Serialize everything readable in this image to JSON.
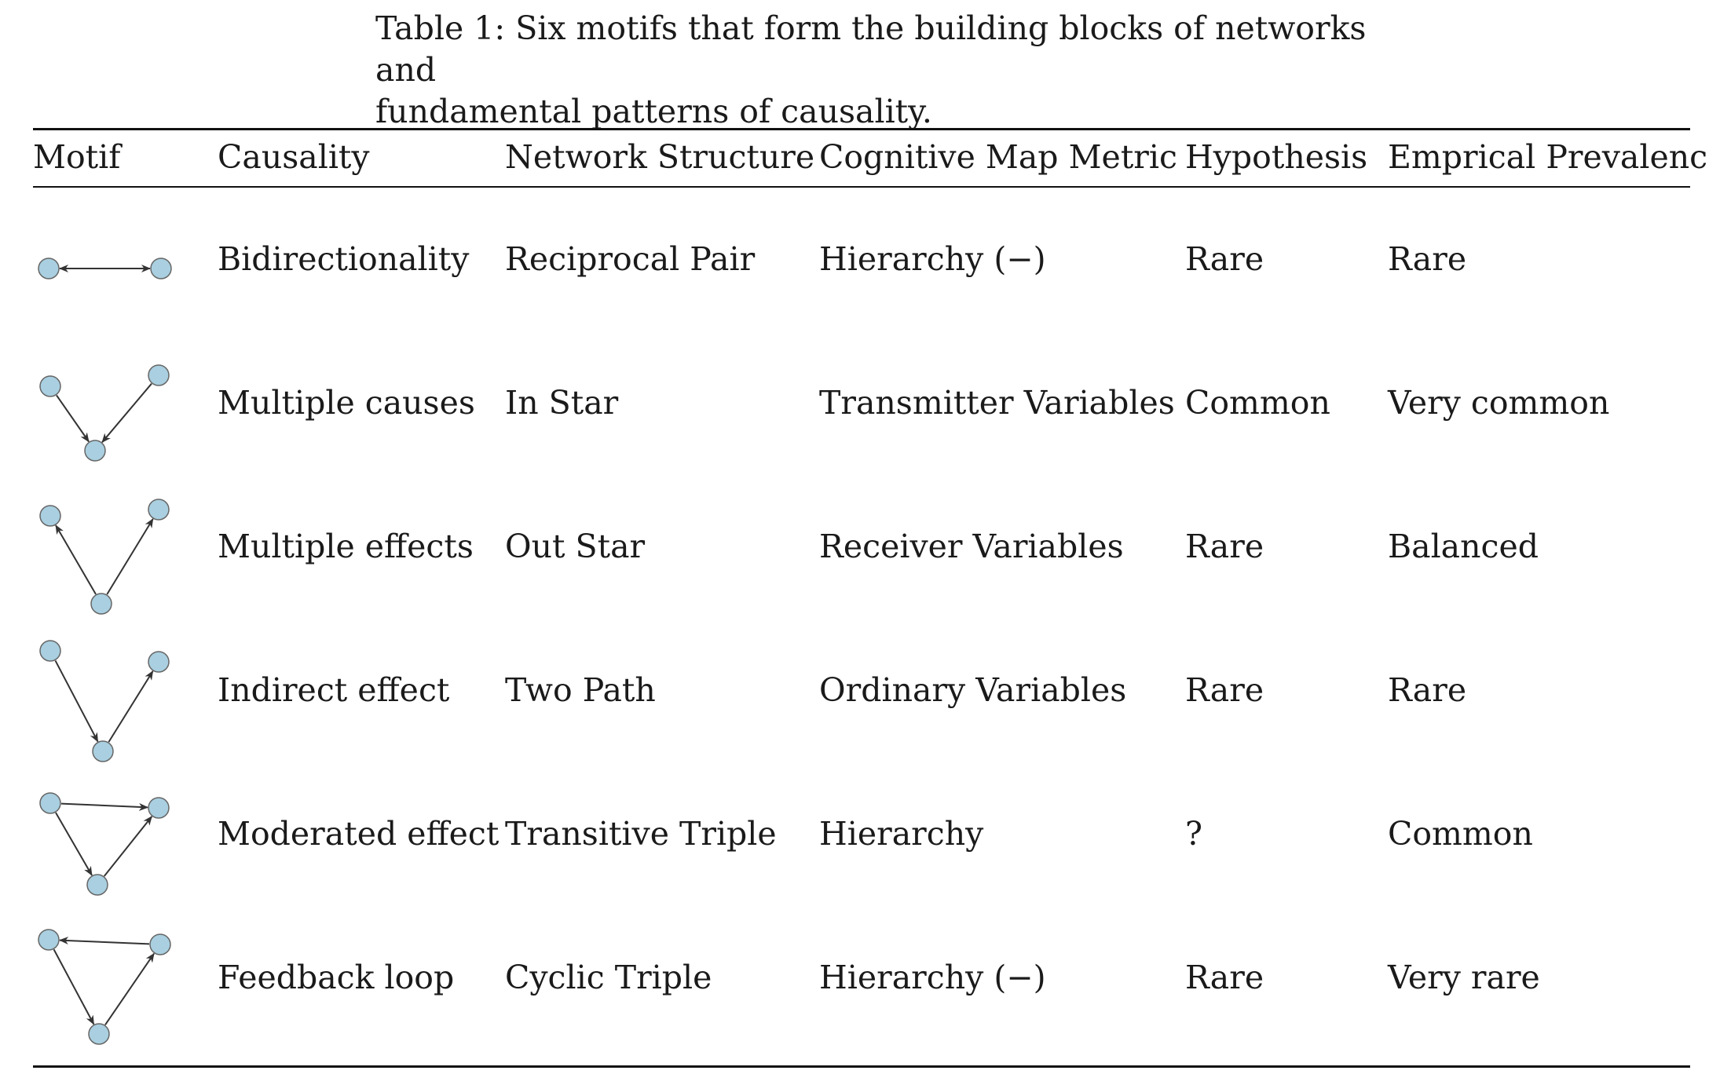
{
  "caption": {
    "line1": "Table 1: Six motifs that form the building blocks of networks and",
    "line2": "fundamental patterns of causality."
  },
  "headers": [
    "Motif",
    "Causality",
    "Network Structure",
    "Cognitive Map Metric",
    "Hypothesis",
    "Emprical Prevalence"
  ],
  "rows": [
    {
      "causality": "Bidirectionality",
      "structure": "Reciprocal Pair",
      "metric": "Hierarchy (−)",
      "hypothesis": "Rare",
      "prevalence": "Rare"
    },
    {
      "causality": "Multiple causes",
      "structure": "In Star",
      "metric": "Transmitter Variables",
      "hypothesis": "Common",
      "prevalence": "Very common"
    },
    {
      "causality": "Multiple effects",
      "structure": "Out Star",
      "metric": "Receiver Variables",
      "hypothesis": "Rare",
      "prevalence": "Balanced"
    },
    {
      "causality": "Indirect effect",
      "structure": "Two Path",
      "metric": "Ordinary Variables",
      "hypothesis": "Rare",
      "prevalence": "Rare"
    },
    {
      "causality": "Moderated effect",
      "structure": "Transitive Triple",
      "metric": "Hierarchy",
      "hypothesis": "?",
      "prevalence": "Common"
    },
    {
      "causality": "Feedback loop",
      "structure": "Cyclic Triple",
      "metric": "Hierarchy (−)",
      "hypothesis": "Rare",
      "prevalence": "Very rare"
    }
  ],
  "colors": {
    "node_fill": "#a9cfe0",
    "node_stroke": "#666666",
    "edge": "#333333",
    "rule": "#111111"
  }
}
